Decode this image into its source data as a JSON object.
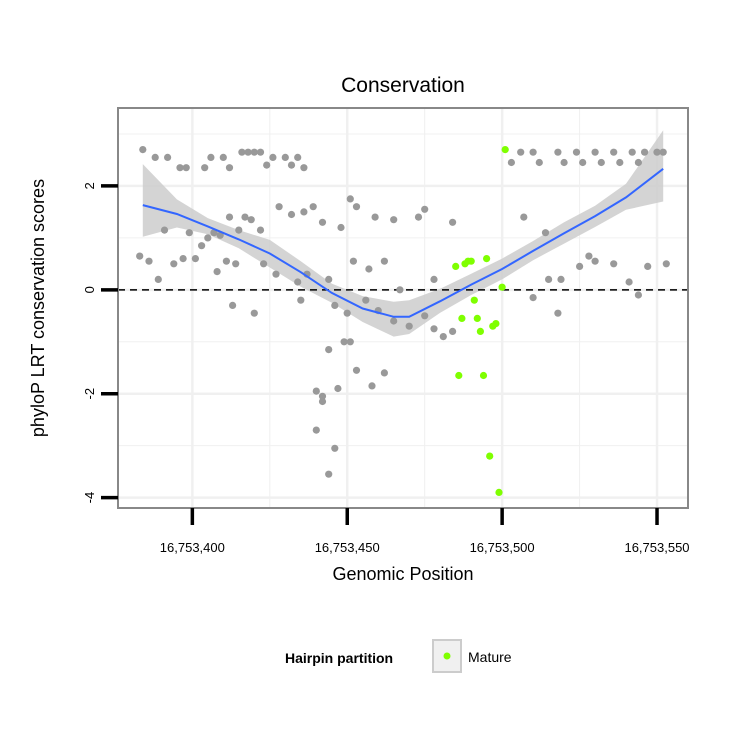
{
  "chart_data": {
    "type": "scatter",
    "title": "Conservation",
    "xlabel": "Genomic Position",
    "ylabel": "phyloP LRT conservation scores",
    "xlim": [
      16753376,
      16753560
    ],
    "ylim": [
      -4.2,
      3.5
    ],
    "xticks": [
      16753400,
      16753450,
      16753500,
      16753550
    ],
    "xtick_labels": [
      "16,753,400",
      "16,753,450",
      "16,753,500",
      "16,753,550"
    ],
    "yticks": [
      -4,
      -2,
      0,
      2
    ],
    "ytick_labels": [
      "-4",
      "-2",
      "0",
      "2"
    ],
    "reference_line": {
      "y": 0,
      "style": "dashed"
    },
    "grid": true,
    "legend": {
      "title": "Hairpin partition",
      "position": "bottom",
      "entries": [
        {
          "label": "Mature",
          "color": "#7fff00"
        }
      ]
    },
    "colors": {
      "other": "#999999",
      "mature": "#7fff00",
      "smooth": "#3366ff",
      "band": "#cccccc",
      "dash": "#000000",
      "frame": "#888888",
      "grid": "#f0f0f0"
    },
    "smooth": {
      "method": "loess",
      "x": [
        16753384,
        16753395,
        16753405,
        16753415,
        16753425,
        16753435,
        16753445,
        16753455,
        16753465,
        16753470,
        16753480,
        16753490,
        16753500,
        16753510,
        16753520,
        16753530,
        16753540,
        16753552
      ],
      "y": [
        1.63,
        1.46,
        1.22,
        0.97,
        0.7,
        0.34,
        -0.06,
        -0.36,
        -0.52,
        -0.52,
        -0.22,
        0.1,
        0.4,
        0.75,
        1.09,
        1.42,
        1.78,
        2.33
      ],
      "lower": [
        1.02,
        1.2,
        1.07,
        0.8,
        0.43,
        0.06,
        -0.25,
        -0.62,
        -0.9,
        -0.85,
        -0.44,
        -0.1,
        0.2,
        0.57,
        0.89,
        1.21,
        1.54,
        1.7
      ],
      "upper": [
        2.42,
        1.74,
        1.38,
        1.15,
        0.96,
        0.55,
        0.12,
        -0.12,
        -0.23,
        -0.2,
        0.02,
        0.31,
        0.6,
        0.94,
        1.3,
        1.62,
        2.04,
        3.07
      ]
    },
    "series": [
      {
        "name": "Other",
        "x": [
          16753384,
          16753388,
          16753392,
          16753396,
          16753398,
          16753404,
          16753406,
          16753410,
          16753412,
          16753416,
          16753418,
          16753420,
          16753422,
          16753424,
          16753426,
          16753430,
          16753432,
          16753434,
          16753436,
          16753503,
          16753506,
          16753510,
          16753512,
          16753518,
          16753520,
          16753524,
          16753526,
          16753530,
          16753532,
          16753536,
          16753538,
          16753542,
          16753544,
          16753546,
          16753550,
          16753552,
          16753391,
          16753399,
          16753405,
          16753407,
          16753409,
          16753412,
          16753415,
          16753417,
          16753419,
          16753422,
          16753428,
          16753432,
          16753436,
          16753439,
          16753442,
          16753448,
          16753451,
          16753453,
          16753459,
          16753465,
          16753473,
          16753475,
          16753484,
          16753507,
          16753514,
          16753528,
          16753547,
          16753383,
          16753386,
          16753389,
          16753394,
          16753397,
          16753401,
          16753403,
          16753408,
          16753411,
          16753414,
          16753423,
          16753427,
          16753434,
          16753437,
          16753444,
          16753452,
          16753457,
          16753462,
          16753467,
          16753478,
          16753515,
          16753519,
          16753525,
          16753530,
          16753536,
          16753541,
          16753553,
          16753413,
          16753420,
          16753435,
          16753446,
          16753450,
          16753456,
          16753460,
          16753465,
          16753470,
          16753475,
          16753478,
          16753481,
          16753484,
          16753510,
          16753518,
          16753544,
          16753440,
          16753442,
          16753444,
          16753447,
          16753449,
          16753451,
          16753453,
          16753458,
          16753462,
          16753440,
          16753442,
          16753446,
          16753444
        ],
        "y": [
          2.7,
          2.55,
          2.55,
          2.35,
          2.35,
          2.35,
          2.55,
          2.55,
          2.35,
          2.65,
          2.65,
          2.65,
          2.65,
          2.4,
          2.55,
          2.55,
          2.4,
          2.55,
          2.35,
          2.45,
          2.65,
          2.65,
          2.45,
          2.65,
          2.45,
          2.65,
          2.45,
          2.65,
          2.45,
          2.65,
          2.45,
          2.65,
          2.45,
          2.65,
          2.65,
          2.65,
          1.15,
          1.1,
          1.0,
          1.1,
          1.05,
          1.4,
          1.15,
          1.4,
          1.35,
          1.15,
          1.6,
          1.45,
          1.5,
          1.6,
          1.3,
          1.2,
          1.75,
          1.6,
          1.4,
          1.35,
          1.4,
          1.55,
          1.3,
          1.4,
          1.1,
          0.65,
          0.45,
          0.65,
          0.55,
          0.2,
          0.5,
          0.6,
          0.6,
          0.85,
          0.35,
          0.55,
          0.5,
          0.5,
          0.3,
          0.15,
          0.3,
          0.2,
          0.55,
          0.4,
          0.55,
          0.0,
          0.2,
          0.2,
          0.2,
          0.45,
          0.55,
          0.5,
          0.15,
          0.5,
          -0.3,
          -0.45,
          -0.2,
          -0.3,
          -0.45,
          -0.2,
          -0.4,
          -0.6,
          -0.7,
          -0.5,
          -0.75,
          -0.9,
          -0.8,
          -0.15,
          -0.45,
          -0.1,
          -1.95,
          -2.05,
          -1.15,
          -1.9,
          -1.0,
          -1.0,
          -1.55,
          -1.85,
          -1.6,
          -2.7,
          -2.15,
          -3.05,
          -3.55
        ]
      },
      {
        "name": "Mature",
        "x": [
          16753501,
          16753485,
          16753487,
          16753489,
          16753491,
          16753492,
          16753493,
          16753494,
          16753495,
          16753496,
          16753497,
          16753498,
          16753499,
          16753500,
          16753486,
          16753488,
          16753490
        ],
        "y": [
          2.7,
          0.45,
          -0.55,
          0.55,
          -0.2,
          -0.55,
          -0.8,
          -1.65,
          0.6,
          -3.2,
          -0.7,
          -0.65,
          -3.9,
          0.05,
          -1.65,
          0.5,
          0.55
        ]
      }
    ]
  }
}
